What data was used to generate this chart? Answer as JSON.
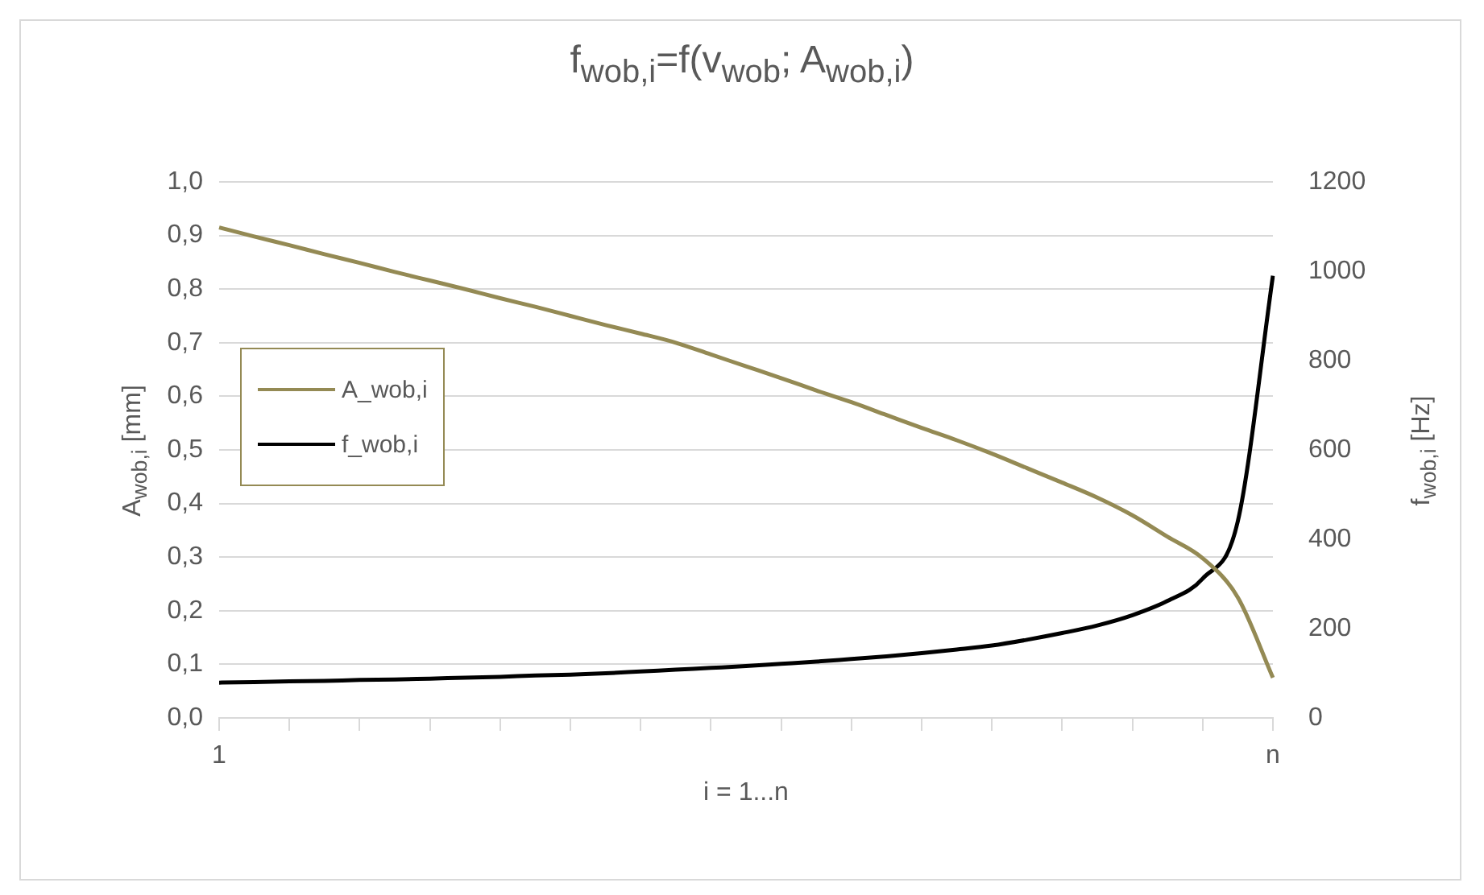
{
  "chart_data": {
    "type": "line",
    "title": "f$_{wob,i}$=f(v$_{wob}$; A$_{wob,i}$)",
    "xlabel": "i = 1...n",
    "ylabel": "A$_{wob,i}$ [mm]",
    "y2label": "f$_{wob,i}$ [Hz]",
    "categories": [
      "1",
      null,
      null,
      null,
      null,
      null,
      null,
      null,
      null,
      null,
      null,
      null,
      null,
      null,
      null,
      null,
      null,
      null,
      null,
      null,
      null,
      null,
      null,
      null,
      null,
      null,
      null,
      null,
      null,
      null,
      "n"
    ],
    "ylim": [
      0,
      1
    ],
    "yticks": [
      {
        "value": 0,
        "label": "0,0"
      },
      {
        "value": 0.1,
        "label": "0,1"
      },
      {
        "value": 0.2,
        "label": "0,2"
      },
      {
        "value": 0.3,
        "label": "0,3"
      },
      {
        "value": 0.4,
        "label": "0,4"
      },
      {
        "value": 0.5,
        "label": "0,5"
      },
      {
        "value": 0.6,
        "label": "0,6"
      },
      {
        "value": 0.7,
        "label": "0,7"
      },
      {
        "value": 0.8,
        "label": "0,8"
      },
      {
        "value": 0.9,
        "label": "0,9"
      },
      {
        "value": 1,
        "label": "1,0"
      }
    ],
    "y2lim": [
      0,
      1200
    ],
    "y2ticks": [
      0,
      200,
      400,
      600,
      800,
      1000,
      1200
    ],
    "grid": "y",
    "legend": "left",
    "marker": "none",
    "line_style": "solid",
    "series": [
      {
        "name": "A_wob,i",
        "color": "#948a54",
        "values": [
          0.915,
          0.898,
          0.882,
          0.865,
          0.849,
          0.832,
          0.816,
          0.8,
          0.783,
          0.767,
          0.75,
          0.733,
          0.717,
          0.7,
          0.678,
          0.656,
          0.634,
          0.611,
          0.589,
          0.565,
          0.541,
          0.518,
          0.493,
          0.466,
          0.439,
          0.411,
          0.378,
          0.338,
          0.298,
          0.225,
          0.075
        ]
      },
      {
        "name": "f_wob,i",
        "color": "#000000",
        "axis": "y2",
        "values": [
          79,
          80,
          82,
          83,
          85,
          86,
          88,
          90,
          92,
          95,
          97,
          100,
          104,
          108,
          112,
          116,
          121,
          126,
          132,
          138,
          145,
          153,
          162,
          175,
          190,
          207,
          230,
          262,
          312,
          440,
          990
        ]
      }
    ]
  }
}
